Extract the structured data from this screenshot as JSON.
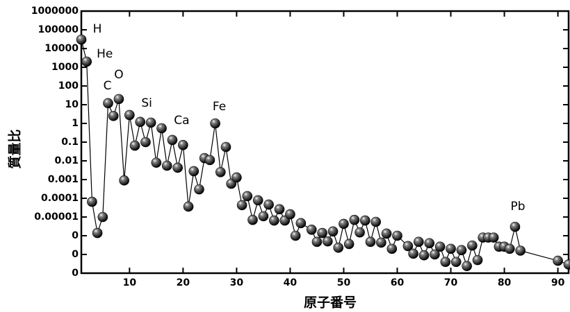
{
  "chart_data": {
    "type": "line",
    "x_label": "原子番号",
    "y_label": "質量比",
    "x": [
      1,
      2,
      3,
      4,
      5,
      6,
      7,
      8,
      9,
      10,
      11,
      12,
      13,
      14,
      15,
      16,
      17,
      18,
      19,
      20,
      21,
      22,
      23,
      24,
      25,
      26,
      27,
      28,
      29,
      30,
      31,
      32,
      33,
      34,
      35,
      36,
      37,
      38,
      39,
      40,
      41,
      42,
      44,
      45,
      46,
      47,
      48,
      49,
      50,
      51,
      52,
      53,
      54,
      55,
      56,
      57,
      58,
      59,
      60,
      62,
      63,
      64,
      65,
      66,
      67,
      68,
      69,
      70,
      71,
      72,
      73,
      74,
      75,
      76,
      77,
      78,
      79,
      80,
      81,
      82,
      83,
      90,
      92
    ],
    "values": [
      30000,
      2000,
      6.5e-05,
      1.4e-06,
      1e-05,
      12,
      2.5,
      20,
      0.0009,
      2.8,
      0.065,
      1.2,
      0.1,
      1.1,
      0.008,
      0.55,
      0.0055,
      0.13,
      0.0043,
      0.07,
      3.6e-05,
      0.0028,
      0.0003,
      0.014,
      0.011,
      1,
      0.0025,
      0.055,
      0.0006,
      0.0013,
      4.3e-05,
      0.00013,
      7e-06,
      7.8e-05,
      1.1e-05,
      4.6e-05,
      6.5e-06,
      2.6e-05,
      6.5e-06,
      1.4e-05,
      1e-06,
      4.7e-06,
      2.1e-06,
      4.7e-07,
      1.4e-06,
      5e-07,
      1.7e-06,
      2.3e-07,
      4.3e-06,
      3.6e-07,
      7e-06,
      1.5e-06,
      6.5e-06,
      4.7e-07,
      5.5e-06,
      4.3e-07,
      1.3e-06,
      2e-07,
      1e-06,
      2.8e-07,
      1.1e-07,
      4.7e-07,
      9e-08,
      4e-07,
      1e-07,
      2.6e-07,
      4e-08,
      2e-07,
      4e-08,
      1.7e-07,
      2.4e-08,
      3e-07,
      5e-08,
      8e-07,
      8e-07,
      8e-07,
      2.6e-07,
      2.6e-07,
      2e-07,
      3e-06,
      1.6e-07,
      4.6e-08,
      2.9e-08
    ],
    "color": "#000000",
    "log_y": true,
    "xlim": [
      1,
      92
    ],
    "xticks": [
      10,
      20,
      30,
      40,
      50,
      60,
      70,
      80,
      90
    ],
    "ylim": [
      1e-08,
      1000000
    ],
    "yticks": [
      1000000,
      100000,
      10000,
      1000,
      100,
      10,
      1,
      0.1,
      0.01,
      0.001,
      0.0001,
      1e-05,
      {
        "value": 1e-06,
        "label": "0"
      },
      {
        "value": 1e-07,
        "label": "0"
      },
      {
        "value": 1e-08,
        "label": "0"
      }
    ],
    "annotations": [
      {
        "text": "H"
      },
      {
        "text": "He"
      },
      {
        "text": "C"
      },
      {
        "text": "O"
      },
      {
        "text": "Si"
      },
      {
        "text": "Ca"
      },
      {
        "text": "Fe"
      },
      {
        "text": "Pb"
      }
    ]
  }
}
